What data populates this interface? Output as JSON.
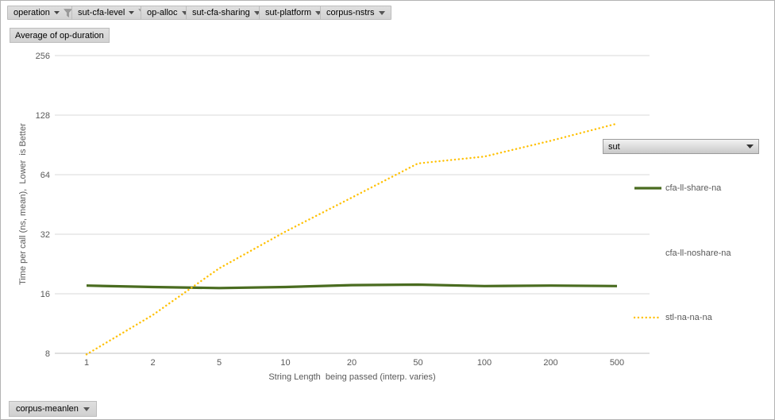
{
  "filters": {
    "items": [
      {
        "label": "operation",
        "filtered": true
      },
      {
        "label": "sut-cfa-level",
        "filtered": true
      },
      {
        "label": "op-alloc",
        "filtered": false
      },
      {
        "label": "sut-cfa-sharing",
        "filtered": false
      },
      {
        "label": "sut-platform",
        "filtered": false
      },
      {
        "label": "corpus-nstrs",
        "filtered": false
      }
    ]
  },
  "pivot": {
    "value_button_label": "Average of op-duration",
    "series_field_dropdown": {
      "label": "sut"
    },
    "bottom_filter_label": "corpus-meanlen"
  },
  "chart_data": {
    "type": "line",
    "title": "Average of op-duration",
    "xlabel": "String Length  being passed (interp. varies)",
    "ylabel": "Time per call (ns, mean),  Lower  is Better",
    "x_scale": "category",
    "y_scale": "log2",
    "ylim": [
      8,
      256
    ],
    "y_ticks": [
      256,
      128,
      64,
      32,
      16,
      8
    ],
    "grid": true,
    "legend_position": "right",
    "categories": [
      "1",
      "2",
      "5",
      "10",
      "20",
      "50",
      "100",
      "200",
      "500"
    ],
    "series": [
      {
        "name": "cfa-ll-share-na",
        "color": "#4a6c20",
        "style": "solid",
        "values": [
          17.6,
          17.3,
          17.1,
          17.3,
          17.7,
          17.8,
          17.5,
          17.6,
          17.5
        ]
      },
      {
        "name": "cfa-ll-noshare-na",
        "color": null,
        "style": "none",
        "values": []
      },
      {
        "name": "stl-na-na-na",
        "color": "#ffc000",
        "style": "dotted",
        "values": [
          7.9,
          12.5,
          21.5,
          33,
          49,
          73,
          79,
          95,
          116
        ]
      }
    ],
    "colors": {
      "gridline": "#d9d9d9",
      "axis_line": "#bfbfbf",
      "axis_text": "#595959"
    }
  }
}
